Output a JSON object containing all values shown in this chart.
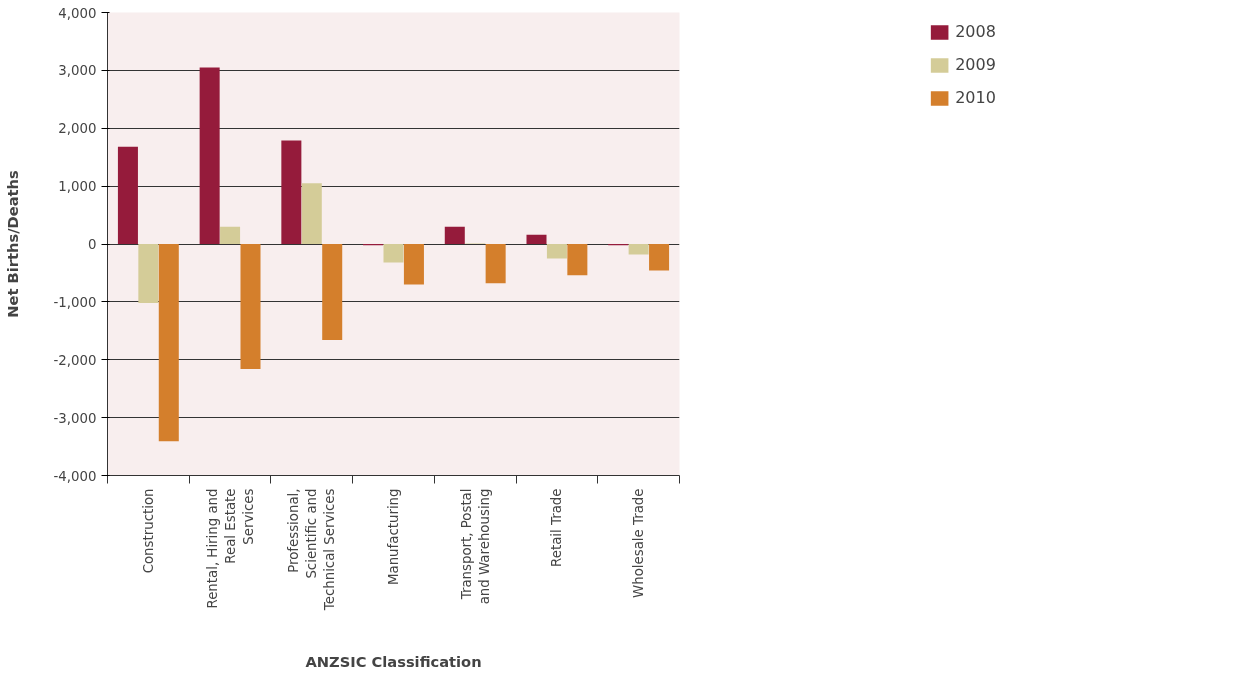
{
  "chart_data": {
    "type": "bar",
    "xlabel": "ANZSIC Classification",
    "ylabel": "Net Births/Deaths",
    "categories": [
      "Construction",
      "Rental, Hiring and Real Estate Services",
      "Professional, Scientific and Technical Services",
      "Manufacturing",
      "Transport, Postal and Warehousing",
      "Retail Trade",
      "Wholesale Trade"
    ],
    "series": [
      {
        "name": "2008",
        "color": "#951b3b",
        "values": [
          1680,
          3050,
          1790,
          -20,
          300,
          160,
          -20
        ]
      },
      {
        "name": "2009",
        "color": "#d4cc98",
        "values": [
          -1020,
          300,
          1050,
          -320,
          10,
          -250,
          -180
        ]
      },
      {
        "name": "2010",
        "color": "#d47f2c",
        "values": [
          -3410,
          -2160,
          -1660,
          -700,
          -680,
          -540,
          -460
        ]
      }
    ],
    "ylim": [
      -4000,
      4000
    ],
    "yticks": [
      {
        "value": -4000,
        "label": "-4,000"
      },
      {
        "value": -3000,
        "label": "-3,000"
      },
      {
        "value": -2000,
        "label": "-2,000"
      },
      {
        "value": -1000,
        "label": "-1,000"
      },
      0,
      {
        "value": 1000,
        "label": "1,000"
      },
      {
        "value": 2000,
        "label": "2,000"
      },
      {
        "value": 3000,
        "label": "3,000"
      },
      {
        "value": 4000,
        "label": "4,000"
      }
    ],
    "grid": "y",
    "legend": "top right"
  }
}
